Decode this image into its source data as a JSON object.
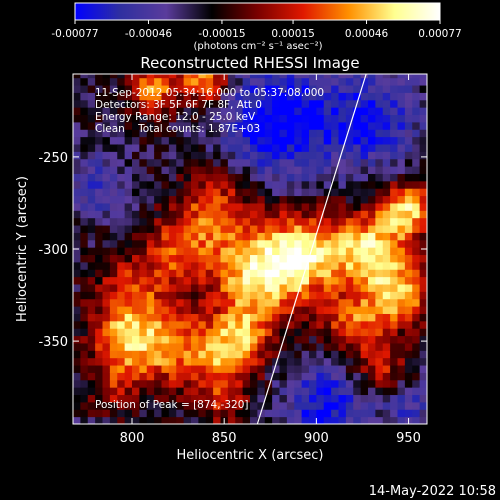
{
  "chart_data": {
    "type": "heatmap",
    "title": "Reconstructed RHESSI Image",
    "xlabel": "Heliocentric X (arcsec)",
    "ylabel": "Heliocentric Y (arcsec)",
    "xlim": [
      768,
      960
    ],
    "ylim": [
      -395,
      -205
    ],
    "x_ticks": [
      "800",
      "850",
      "900",
      "950"
    ],
    "x_tick_values": [
      800,
      850,
      900,
      950
    ],
    "y_ticks": [
      "-250",
      "-300",
      "-350"
    ],
    "y_tick_values": [
      -250,
      -300,
      -350
    ],
    "colorbar": {
      "ticks": [
        "-0.00077",
        "-0.00046",
        "-0.00015",
        "0.00015",
        "0.00046",
        "0.00077"
      ],
      "tick_values": [
        -0.00077,
        -0.00046,
        -0.00015,
        0.00015,
        0.00046,
        0.00077
      ],
      "range": [
        -0.00077,
        0.00077
      ],
      "unit_label": "(photons cm⁻² s⁻¹ asec⁻²)"
    },
    "annotations": [
      "11-Sep-2012 05:34:16.000 to 05:37:08.000",
      "Detectors: 3F 5F 6F 7F 8F, Att 0",
      "Energy Range: 12.0 - 25.0 keV",
      "Clean    Total counts: 1.87E+03",
      "Position of Peak = [874,-320]"
    ],
    "peak": {
      "x": 874,
      "y": -320
    },
    "limb_line": [
      [
        868,
        -395
      ],
      [
        927,
        -205
      ]
    ],
    "colormap_stops": [
      "#0000ff",
      "#2f2fa0",
      "#5a3c9c",
      "#000000",
      "#7a0000",
      "#e01800",
      "#ff9000",
      "#ffff90",
      "#ffffff"
    ],
    "blobs": [
      {
        "x": 868,
        "y": -313,
        "amp": 0.95,
        "s": 18
      },
      {
        "x": 895,
        "y": -302,
        "amp": 0.85,
        "s": 15
      },
      {
        "x": 845,
        "y": -278,
        "amp": 0.6,
        "s": 14
      },
      {
        "x": 825,
        "y": -300,
        "amp": 0.55,
        "s": 12
      },
      {
        "x": 800,
        "y": -322,
        "amp": 0.5,
        "s": 14
      },
      {
        "x": 815,
        "y": -352,
        "amp": 0.7,
        "s": 15
      },
      {
        "x": 848,
        "y": -360,
        "amp": 0.65,
        "s": 14
      },
      {
        "x": 793,
        "y": -348,
        "amp": 0.55,
        "s": 12
      },
      {
        "x": 812,
        "y": -212,
        "amp": 0.7,
        "s": 10
      },
      {
        "x": 840,
        "y": -208,
        "amp": 0.8,
        "s": 9
      },
      {
        "x": 930,
        "y": -300,
        "amp": 0.9,
        "s": 14
      },
      {
        "x": 950,
        "y": -278,
        "amp": 0.85,
        "s": 10
      },
      {
        "x": 945,
        "y": -325,
        "amp": 0.8,
        "s": 12
      },
      {
        "x": 920,
        "y": -340,
        "amp": 0.6,
        "s": 12
      },
      {
        "x": 935,
        "y": -365,
        "amp": 0.45,
        "s": 10
      },
      {
        "x": 860,
        "y": -345,
        "amp": 0.5,
        "s": 10
      },
      {
        "x": 790,
        "y": -375,
        "amp": 0.35,
        "s": 10
      },
      {
        "x": 850,
        "y": -385,
        "amp": 0.3,
        "s": 9
      }
    ],
    "negative_regions": [
      {
        "x": 880,
        "y": -230,
        "amp": 0.7,
        "s": 22
      },
      {
        "x": 930,
        "y": -230,
        "amp": 0.55,
        "s": 18
      },
      {
        "x": 905,
        "y": -385,
        "amp": 0.6,
        "s": 16
      },
      {
        "x": 780,
        "y": -265,
        "amp": 0.4,
        "s": 12
      },
      {
        "x": 950,
        "y": -385,
        "amp": 0.35,
        "s": 10
      }
    ]
  },
  "footer": {
    "timestamp": "14-May-2022 10:58"
  }
}
